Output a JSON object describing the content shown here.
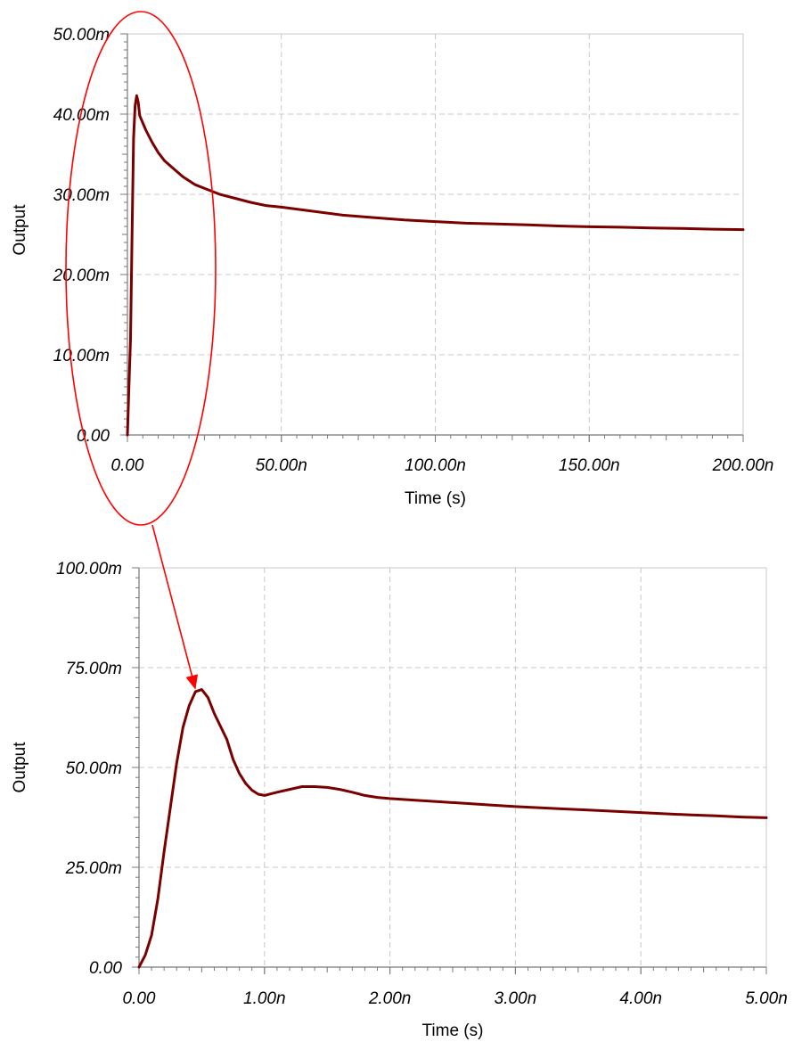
{
  "chart_data": [
    {
      "type": "line",
      "xlabel": "Time (s)",
      "ylabel": "Output",
      "xlim": [
        0,
        200
      ],
      "ylim": [
        0,
        50
      ],
      "x_unit": "ns",
      "y_unit": "mV",
      "grid": true,
      "x_ticks": [
        0,
        50,
        100,
        150,
        200
      ],
      "x_tick_labels": [
        "0.00",
        "50.00n",
        "100.00n",
        "150.00n",
        "200.00n"
      ],
      "y_ticks": [
        0,
        10,
        20,
        30,
        40,
        50
      ],
      "y_tick_labels": [
        "0.00",
        "10.00m",
        "20.00m",
        "30.00m",
        "40.00m",
        "50.00m"
      ],
      "series": [
        {
          "color": "#7a0000",
          "points": [
            [
              0,
              0
            ],
            [
              0.5,
              6
            ],
            [
              1,
              12
            ],
            [
              1.5,
              25
            ],
            [
              2,
              37
            ],
            [
              2.5,
              41
            ],
            [
              3,
              42.3
            ],
            [
              3.5,
              41.5
            ],
            [
              4,
              39.8
            ],
            [
              6,
              38
            ],
            [
              8,
              36.5
            ],
            [
              10,
              35.2
            ],
            [
              12,
              34.2
            ],
            [
              15,
              33.2
            ],
            [
              18,
              32.2
            ],
            [
              22,
              31.2
            ],
            [
              26,
              30.6
            ],
            [
              30,
              30
            ],
            [
              35,
              29.5
            ],
            [
              40,
              29
            ],
            [
              45,
              28.6
            ],
            [
              50,
              28.4
            ],
            [
              60,
              27.9
            ],
            [
              70,
              27.4
            ],
            [
              80,
              27.1
            ],
            [
              90,
              26.8
            ],
            [
              100,
              26.6
            ],
            [
              110,
              26.4
            ],
            [
              120,
              26.3
            ],
            [
              130,
              26.2
            ],
            [
              140,
              26.05
            ],
            [
              150,
              25.95
            ],
            [
              160,
              25.9
            ],
            [
              170,
              25.8
            ],
            [
              180,
              25.75
            ],
            [
              190,
              25.65
            ],
            [
              200,
              25.6
            ]
          ]
        }
      ]
    },
    {
      "type": "line",
      "xlabel": "Time (s)",
      "ylabel": "Output",
      "xlim": [
        0,
        5
      ],
      "ylim": [
        0,
        100
      ],
      "x_unit": "ns",
      "y_unit": "mV",
      "grid": true,
      "x_ticks": [
        0,
        1,
        2,
        3,
        4,
        5
      ],
      "x_tick_labels": [
        "0.00",
        "1.00n",
        "2.00n",
        "3.00n",
        "4.00n",
        "5.00n"
      ],
      "y_ticks": [
        0,
        25,
        50,
        75,
        100
      ],
      "y_tick_labels": [
        "0.00",
        "25.00m",
        "50.00m",
        "75.00m",
        "100.00m"
      ],
      "series": [
        {
          "color": "#7a0000",
          "points": [
            [
              0,
              0
            ],
            [
              0.05,
              3
            ],
            [
              0.1,
              8
            ],
            [
              0.15,
              17
            ],
            [
              0.2,
              29
            ],
            [
              0.25,
              40
            ],
            [
              0.3,
              51
            ],
            [
              0.35,
              60
            ],
            [
              0.4,
              65.5
            ],
            [
              0.45,
              69
            ],
            [
              0.5,
              69.5
            ],
            [
              0.55,
              67.5
            ],
            [
              0.6,
              63.5
            ],
            [
              0.7,
              57
            ],
            [
              0.75,
              52
            ],
            [
              0.8,
              48.5
            ],
            [
              0.85,
              46
            ],
            [
              0.9,
              44.3
            ],
            [
              0.95,
              43.3
            ],
            [
              1.0,
              43
            ],
            [
              1.1,
              43.8
            ],
            [
              1.2,
              44.5
            ],
            [
              1.3,
              45.2
            ],
            [
              1.4,
              45.2
            ],
            [
              1.5,
              45
            ],
            [
              1.6,
              44.5
            ],
            [
              1.7,
              43.8
            ],
            [
              1.8,
              43
            ],
            [
              1.9,
              42.5
            ],
            [
              2.0,
              42.2
            ],
            [
              2.2,
              41.8
            ],
            [
              2.4,
              41.4
            ],
            [
              2.6,
              41
            ],
            [
              2.8,
              40.6
            ],
            [
              3.0,
              40.2
            ],
            [
              3.2,
              39.9
            ],
            [
              3.4,
              39.6
            ],
            [
              3.6,
              39.3
            ],
            [
              3.8,
              39
            ],
            [
              4.0,
              38.7
            ],
            [
              4.2,
              38.4
            ],
            [
              4.4,
              38.1
            ],
            [
              4.6,
              37.9
            ],
            [
              4.8,
              37.6
            ],
            [
              5.0,
              37.4
            ]
          ]
        }
      ]
    }
  ],
  "annotation": {
    "color": "#ff0000",
    "target_x": 0.45,
    "target_y": 69.5
  }
}
